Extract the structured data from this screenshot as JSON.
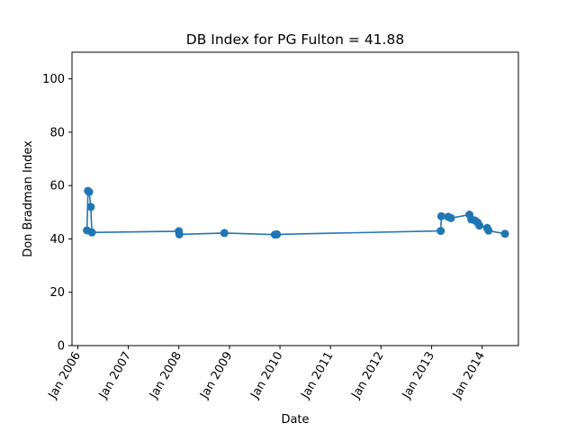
{
  "chart_data": {
    "type": "line",
    "title": "DB Index for PG Fulton = 41.88",
    "xlabel": "Date",
    "ylabel": "Don Bradman Index",
    "ylim": [
      0,
      110
    ],
    "yticks": [
      0,
      20,
      40,
      60,
      80,
      100
    ],
    "xlim": [
      "2005-11-20",
      "2014-09-20"
    ],
    "xticks": [
      {
        "date": "2006-01-01",
        "label": "Jan 2006"
      },
      {
        "date": "2007-01-01",
        "label": "Jan 2007"
      },
      {
        "date": "2008-01-01",
        "label": "Jan 2008"
      },
      {
        "date": "2009-01-01",
        "label": "Jan 2009"
      },
      {
        "date": "2010-01-01",
        "label": "Jan 2010"
      },
      {
        "date": "2011-01-01",
        "label": "Jan 2011"
      },
      {
        "date": "2012-01-01",
        "label": "Jan 2012"
      },
      {
        "date": "2013-01-01",
        "label": "Jan 2013"
      },
      {
        "date": "2014-01-01",
        "label": "Jan 2014"
      }
    ],
    "grid": false,
    "color": "#1f77b4",
    "series": [
      {
        "x": [
          "2006-03-08",
          "2006-03-16",
          "2006-03-24",
          "2006-04-05",
          "2006-04-13",
          "2008-01-01",
          "2008-01-05",
          "2008-11-25",
          "2009-11-25",
          "2009-12-10",
          "2013-03-08",
          "2013-03-12",
          "2013-05-01",
          "2013-05-20",
          "2013-10-01",
          "2013-10-15",
          "2013-11-10",
          "2013-11-28",
          "2013-12-12",
          "2014-02-06",
          "2014-02-16",
          "2014-06-15"
        ],
        "y": [
          43.2,
          58.0,
          57.6,
          52.0,
          42.4,
          42.9,
          41.7,
          42.2,
          41.6,
          41.7,
          43.0,
          48.5,
          48.3,
          47.8,
          49.1,
          47.3,
          46.9,
          46.2,
          45.0,
          44.1,
          43.1,
          41.9
        ]
      }
    ]
  }
}
